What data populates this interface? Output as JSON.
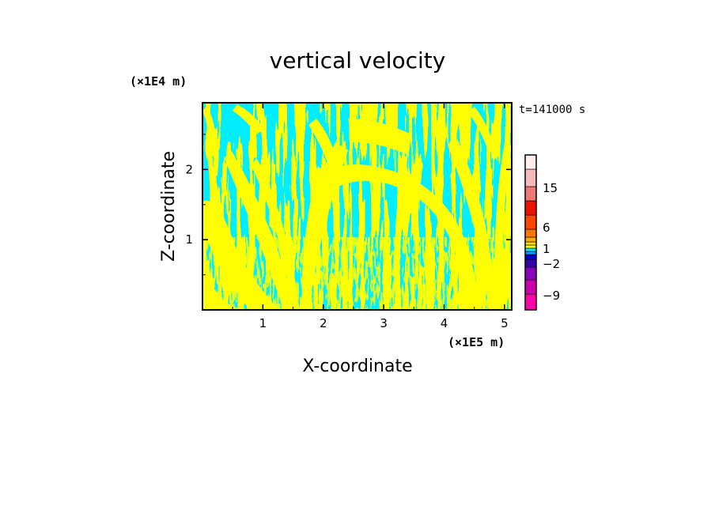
{
  "chart_data": {
    "type": "heatmap",
    "title": "vertical velocity",
    "xlabel": "X-coordinate",
    "ylabel": "Z-coordinate",
    "x_unit": "(×1E5 m)",
    "y_unit": "(×1E4 m)",
    "time_label": "t=141000 s",
    "xlim": [
      0,
      5.12
    ],
    "ylim": [
      0,
      2.95
    ],
    "x_ticks": [
      1,
      2,
      3,
      4,
      5
    ],
    "y_ticks": [
      1,
      2
    ],
    "grid": false,
    "field_colors": {
      "positive": "#ffff00",
      "negative": "#00eeff"
    },
    "colorbar": {
      "position": "right",
      "levels": [
        {
          "color": "#ff00aa"
        },
        {
          "color": "#cc00aa"
        },
        {
          "color": "#8800bb"
        },
        {
          "color": "#3300aa"
        },
        {
          "color": "#0000cc"
        },
        {
          "color": "#0099ff"
        },
        {
          "color": "#00eeff"
        },
        {
          "color": "#ffff00"
        },
        {
          "color": "#ffdd00"
        },
        {
          "color": "#ffaa00"
        },
        {
          "color": "#ff7700"
        },
        {
          "color": "#ff4400"
        },
        {
          "color": "#ee1100"
        },
        {
          "color": "#ee7777"
        },
        {
          "color": "#f5bbbb"
        },
        {
          "color": "#fff0ee"
        }
      ],
      "tick_labels": [
        {
          "label": "15",
          "value": 15
        },
        {
          "label": "6",
          "value": 6
        },
        {
          "label": "1",
          "value": 1
        },
        {
          "label": "−2",
          "value": -2
        },
        {
          "label": "−9",
          "value": -9
        }
      ]
    }
  }
}
